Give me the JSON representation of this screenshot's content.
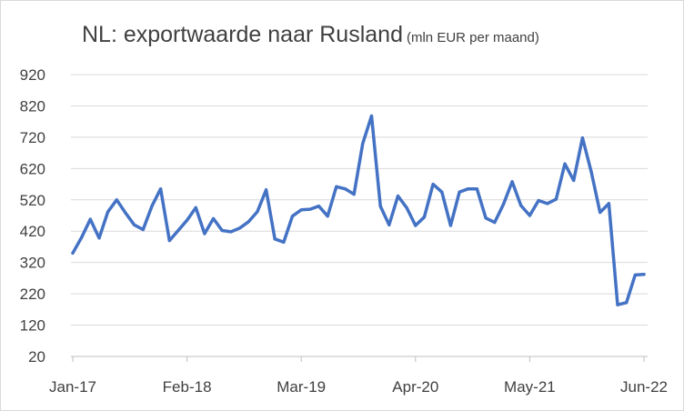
{
  "chart_data": {
    "type": "line",
    "title": "NL: exportwaarde naar Rusland",
    "subtitle": "(mln EUR per maand)",
    "xlabel": "",
    "ylabel": "",
    "ylim": [
      20,
      920
    ],
    "yticks": [
      20,
      120,
      220,
      320,
      420,
      520,
      620,
      720,
      820,
      920
    ],
    "xtick_labels": [
      "Jan-17",
      "Feb-18",
      "Mar-19",
      "Apr-20",
      "May-21",
      "Jun-22"
    ],
    "grid": true,
    "legend": "none",
    "line_color": "#4472c4",
    "series": [
      {
        "values": [
          350,
          400,
          458,
          398,
          482,
          520,
          478,
          440,
          425,
          500,
          555,
          390,
          422,
          455,
          495,
          412,
          460,
          422,
          418,
          430,
          450,
          482,
          552,
          395,
          385,
          468,
          488,
          490,
          500,
          468,
          562,
          555,
          538,
          700,
          788,
          500,
          440,
          532,
          495,
          438,
          465,
          570,
          545,
          438,
          545,
          555,
          555,
          462,
          448,
          505,
          578,
          502,
          470,
          518,
          508,
          522,
          635,
          582,
          718,
          610,
          480,
          508,
          185,
          192,
          280,
          282
        ]
      }
    ]
  }
}
